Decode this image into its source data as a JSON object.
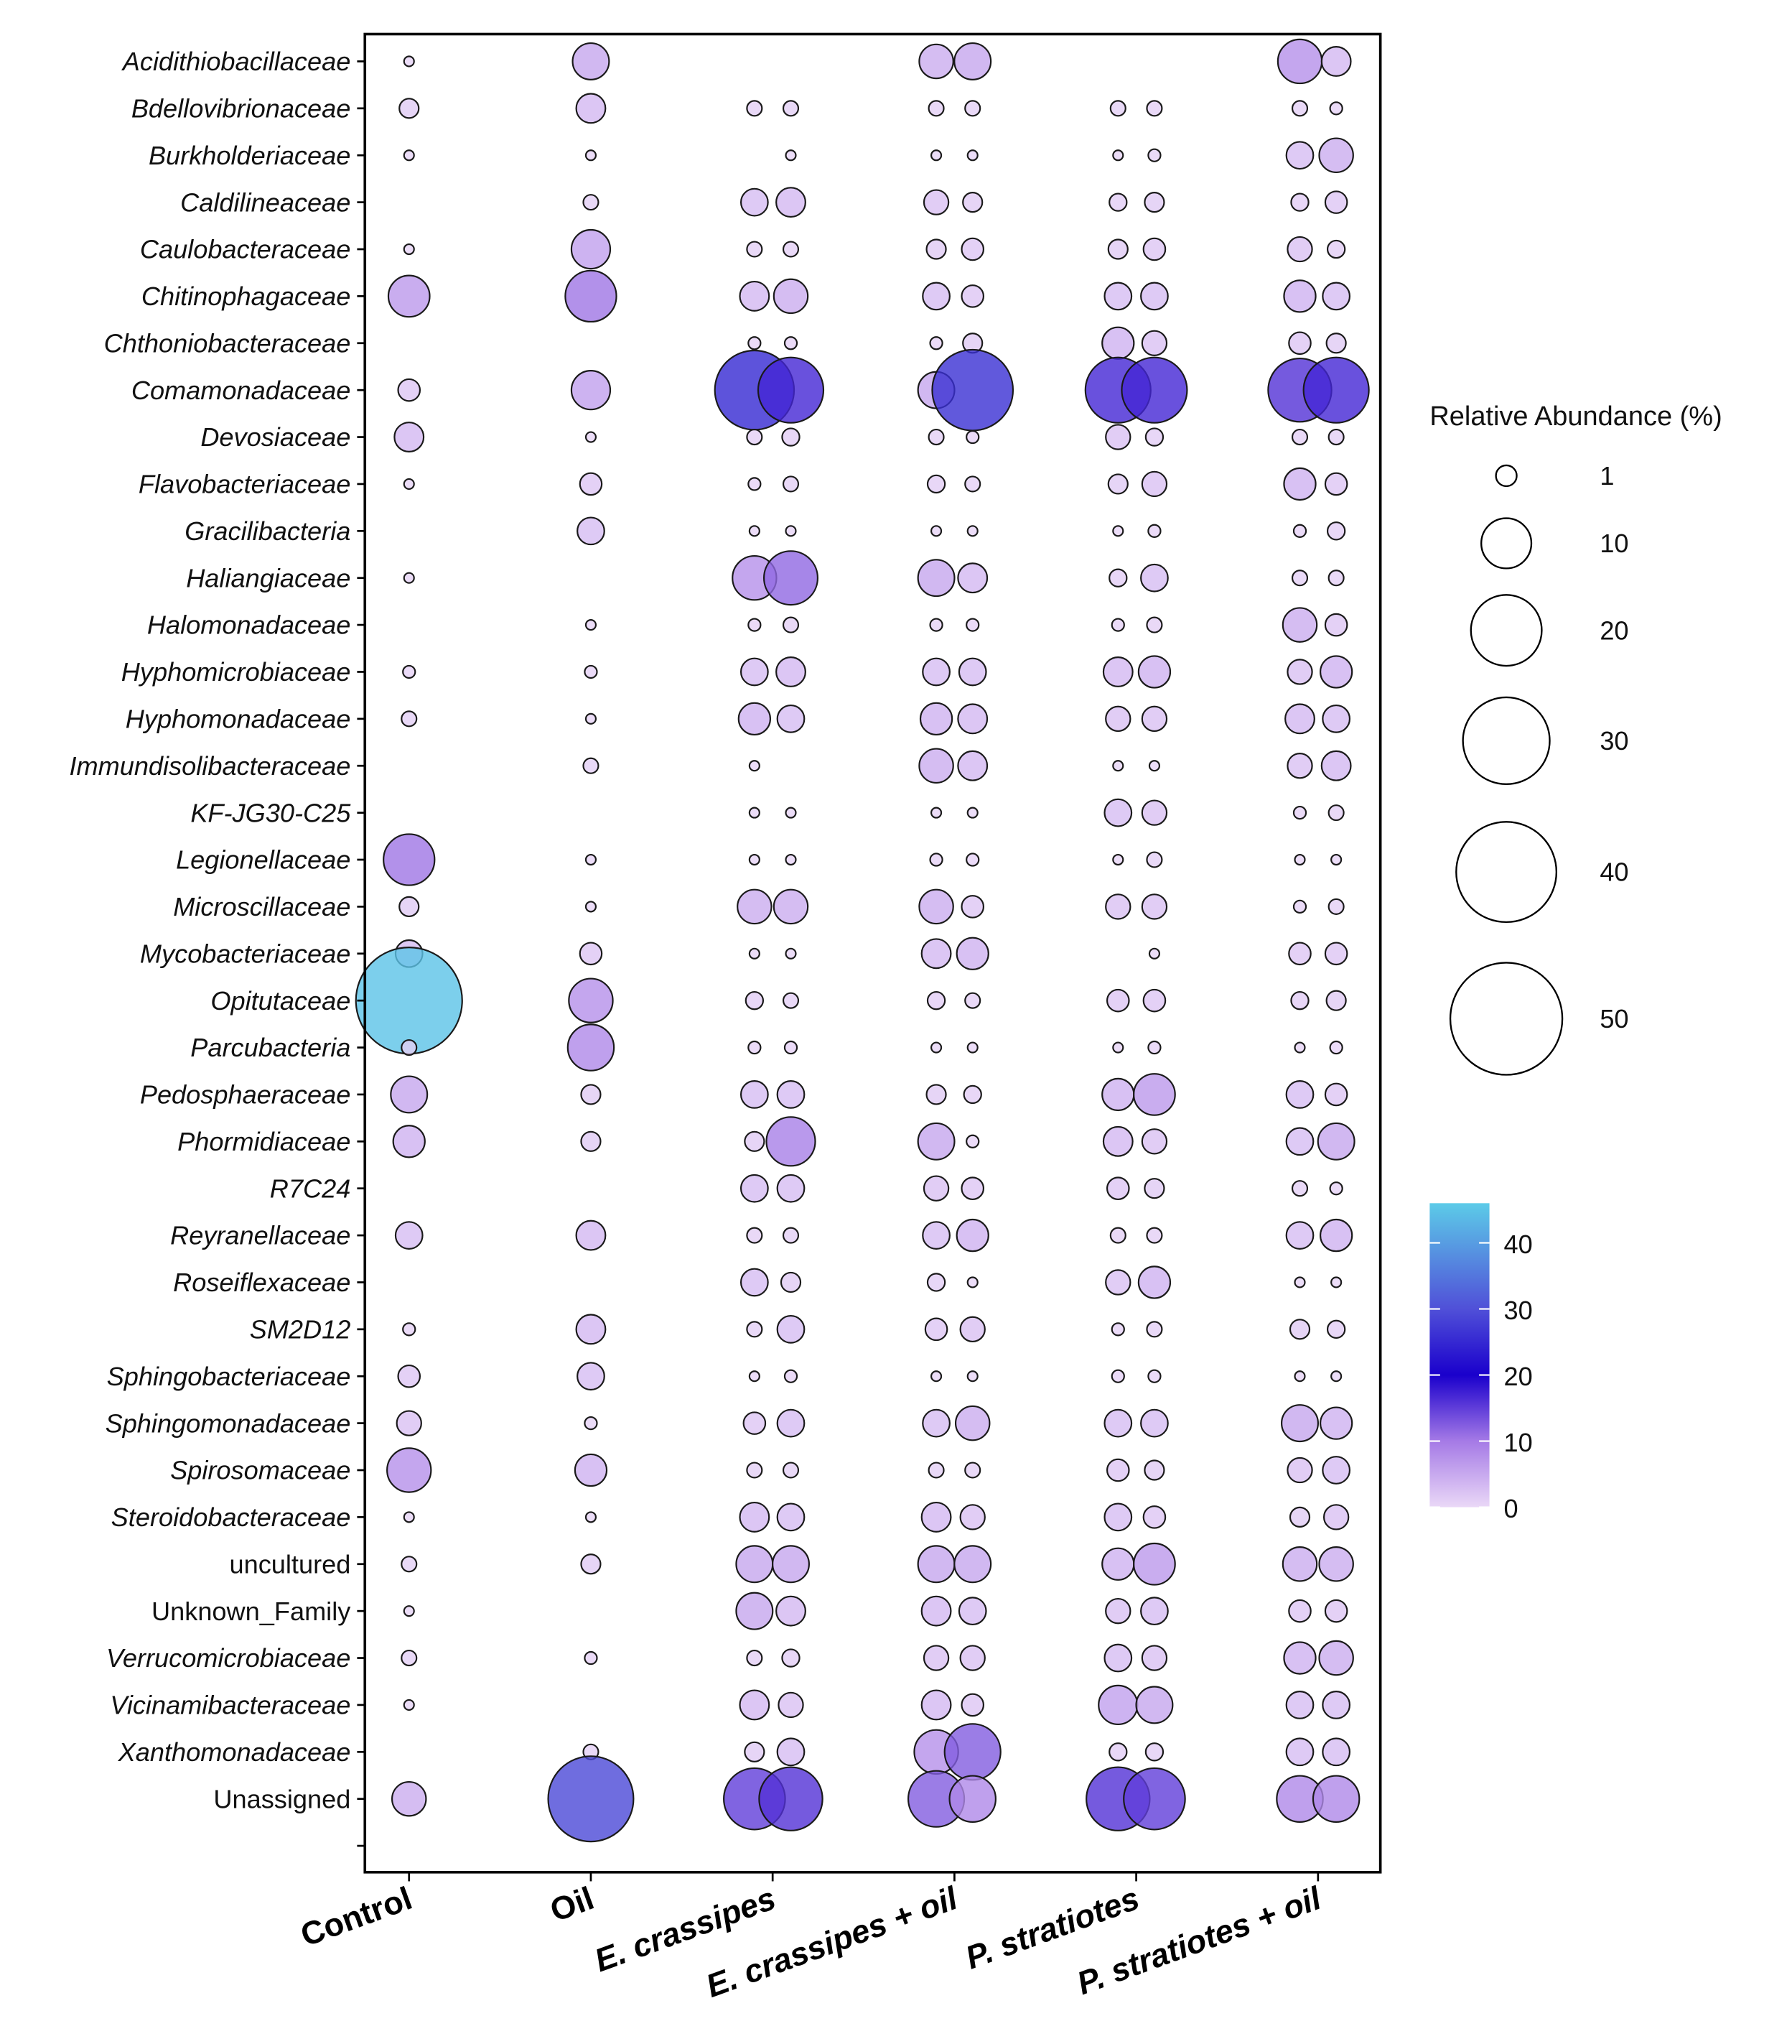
{
  "chart_data": {
    "type": "scatter",
    "subtype": "bubble",
    "title": "",
    "xlabel": "",
    "ylabel": "",
    "groups": [
      "Control",
      "Oil",
      "E. crassipes",
      "E. crassipes + oil",
      "P. stratiotes",
      "P. stratiotes + oil"
    ],
    "group_italic": [
      false,
      false,
      true,
      true,
      true,
      true
    ],
    "replicates_per_group": [
      1,
      1,
      2,
      2,
      2,
      2
    ],
    "families": [
      {
        "name": "Acidithiobacillaceae",
        "italic": true,
        "values": [
          0.4,
          5.3,
          null,
          null,
          4.6,
          5.3,
          null,
          null,
          7.7,
          3.4
        ]
      },
      {
        "name": "Bdellovibrionaceae",
        "italic": true,
        "values": [
          1.5,
          3.4,
          0.9,
          0.9,
          0.9,
          0.9,
          0.9,
          0.9,
          0.9,
          0.6
        ]
      },
      {
        "name": "Burkholderiaceae",
        "italic": true,
        "values": [
          0.4,
          0.4,
          null,
          0.4,
          0.4,
          0.4,
          0.4,
          0.6,
          2.9,
          4.6
        ]
      },
      {
        "name": "Caldilineaceae",
        "italic": true,
        "values": [
          null,
          0.9,
          2.9,
          3.4,
          2.4,
          1.5,
          1.2,
          1.5,
          1.2,
          1.9
        ]
      },
      {
        "name": "Caulobacteraceae",
        "italic": true,
        "values": [
          0.4,
          6.0,
          0.9,
          0.9,
          1.5,
          1.9,
          1.5,
          1.9,
          2.4,
          1.2
        ]
      },
      {
        "name": "Chitinophagaceae",
        "italic": true,
        "values": [
          6.8,
          10.4,
          3.4,
          4.6,
          2.9,
          1.9,
          2.9,
          2.9,
          4.0,
          2.9
        ]
      },
      {
        "name": "Chthoniobacteraceae",
        "italic": true,
        "values": [
          null,
          null,
          0.6,
          0.6,
          0.6,
          1.5,
          4.0,
          2.4,
          1.9,
          1.5
        ]
      },
      {
        "name": "Comamonadaceae",
        "italic": true,
        "values": [
          1.9,
          6.0,
          25,
          17,
          5.3,
          26,
          17,
          17,
          16,
          17
        ]
      },
      {
        "name": "Devosiaceae",
        "italic": true,
        "values": [
          3.4,
          0.4,
          0.9,
          1.2,
          0.9,
          0.6,
          2.4,
          1.2,
          0.9,
          0.9
        ]
      },
      {
        "name": "Flavobacteriaceae",
        "italic": true,
        "values": [
          0.4,
          1.9,
          0.6,
          0.9,
          1.2,
          0.9,
          1.5,
          2.4,
          4.0,
          1.9
        ]
      },
      {
        "name": "Gracilibacteria",
        "italic": true,
        "values": [
          null,
          2.9,
          0.4,
          0.4,
          0.4,
          0.4,
          0.4,
          0.6,
          0.6,
          1.2
        ]
      },
      {
        "name": "Haliangiaceae",
        "italic": true,
        "values": [
          0.4,
          null,
          7.7,
          11.5,
          5.3,
          3.4,
          1.2,
          2.9,
          0.9,
          0.9
        ]
      },
      {
        "name": "Halomonadaceae",
        "italic": true,
        "values": [
          null,
          0.4,
          0.6,
          0.9,
          0.6,
          0.6,
          0.6,
          0.9,
          4.6,
          1.9
        ]
      },
      {
        "name": "Hyphomicrobiaceae",
        "italic": true,
        "values": [
          0.6,
          0.6,
          2.9,
          3.4,
          2.9,
          2.9,
          3.4,
          4.0,
          2.4,
          4.0
        ]
      },
      {
        "name": "Hyphomonadaceae",
        "italic": true,
        "values": [
          0.9,
          0.4,
          4.0,
          2.9,
          4.0,
          3.4,
          2.4,
          2.4,
          3.4,
          2.9
        ]
      },
      {
        "name": "Immundisolibacteraceae",
        "italic": true,
        "values": [
          null,
          0.9,
          0.4,
          null,
          4.6,
          3.4,
          0.4,
          0.4,
          2.4,
          3.4
        ]
      },
      {
        "name": "KF-JG30-C25",
        "italic": true,
        "values": [
          null,
          null,
          0.4,
          0.4,
          0.4,
          0.4,
          2.9,
          2.4,
          0.6,
          0.9
        ]
      },
      {
        "name": "Legionellaceae",
        "italic": true,
        "values": [
          10.4,
          0.4,
          0.4,
          0.4,
          0.6,
          0.6,
          0.4,
          0.9,
          0.4,
          0.4
        ]
      },
      {
        "name": "Microscillaceae",
        "italic": true,
        "values": [
          1.5,
          0.4,
          4.6,
          4.6,
          4.6,
          1.9,
          2.4,
          2.4,
          0.6,
          0.9
        ]
      },
      {
        "name": "Mycobacteriaceae",
        "italic": true,
        "values": [
          2.9,
          1.9,
          0.4,
          0.4,
          3.4,
          4.0,
          null,
          0.4,
          1.9,
          1.9
        ]
      },
      {
        "name": "Opitutaceae",
        "italic": true,
        "values": [
          45,
          7.7,
          1.2,
          0.9,
          1.2,
          0.9,
          1.9,
          1.9,
          1.2,
          1.5
        ]
      },
      {
        "name": "Parcubacteria",
        "italic": true,
        "values": [
          0.9,
          8.5,
          0.6,
          0.6,
          0.4,
          0.4,
          0.4,
          0.6,
          0.4,
          0.6
        ]
      },
      {
        "name": "Pedosphaeraceae",
        "italic": true,
        "values": [
          5.3,
          1.5,
          2.9,
          2.9,
          1.5,
          1.2,
          4.0,
          6.8,
          2.9,
          1.9
        ]
      },
      {
        "name": "Phormidiaceae",
        "italic": true,
        "values": [
          4.0,
          1.5,
          1.5,
          9.5,
          5.3,
          0.6,
          3.4,
          2.4,
          2.9,
          5.3
        ]
      },
      {
        "name": "R7C24",
        "italic": true,
        "values": [
          null,
          null,
          2.9,
          2.9,
          2.4,
          1.9,
          1.9,
          1.5,
          0.9,
          0.6
        ]
      },
      {
        "name": "Reyranellaceae",
        "italic": true,
        "values": [
          2.9,
          3.4,
          0.9,
          0.9,
          2.9,
          4.0,
          0.9,
          0.9,
          2.9,
          4.0
        ]
      },
      {
        "name": "Roseiflexaceae",
        "italic": true,
        "values": [
          null,
          null,
          2.9,
          1.5,
          1.2,
          0.4,
          2.4,
          4.0,
          0.4,
          0.4
        ]
      },
      {
        "name": "SM2D12",
        "italic": true,
        "values": [
          0.6,
          3.4,
          0.9,
          2.9,
          1.9,
          2.4,
          0.6,
          0.9,
          1.5,
          1.2
        ]
      },
      {
        "name": "Sphingobacteriaceae",
        "italic": true,
        "values": [
          1.9,
          2.9,
          0.4,
          0.6,
          0.4,
          0.4,
          0.6,
          0.6,
          0.4,
          0.4
        ]
      },
      {
        "name": "Sphingomonadaceae",
        "italic": true,
        "values": [
          2.4,
          0.6,
          1.9,
          2.9,
          2.9,
          4.6,
          2.9,
          2.9,
          5.3,
          4.0
        ]
      },
      {
        "name": "Spirosomaceae",
        "italic": true,
        "values": [
          7.7,
          4.0,
          0.9,
          0.9,
          0.9,
          0.9,
          1.9,
          1.5,
          2.4,
          2.9
        ]
      },
      {
        "name": "Steroidobacteraceae",
        "italic": true,
        "values": [
          0.4,
          0.4,
          3.4,
          2.9,
          3.4,
          2.4,
          2.9,
          1.9,
          1.5,
          2.4
        ]
      },
      {
        "name": "uncultured",
        "italic": false,
        "values": [
          0.9,
          1.5,
          5.3,
          5.3,
          5.3,
          5.3,
          4.0,
          6.8,
          4.6,
          4.6
        ]
      },
      {
        "name": "Unknown_Family",
        "italic": false,
        "values": [
          0.4,
          null,
          5.3,
          3.4,
          3.4,
          2.9,
          2.4,
          2.9,
          1.9,
          1.9
        ]
      },
      {
        "name": "Verrucomicrobiaceae",
        "italic": true,
        "values": [
          0.9,
          0.6,
          0.9,
          1.2,
          2.4,
          2.4,
          2.9,
          2.4,
          4.0,
          4.6
        ]
      },
      {
        "name": "Vicinamibacteraceae",
        "italic": true,
        "values": [
          0.4,
          null,
          3.4,
          2.4,
          3.4,
          1.9,
          6.0,
          5.3,
          2.9,
          2.9
        ]
      },
      {
        "name": "Xanthomonadaceae",
        "italic": true,
        "values": [
          null,
          0.9,
          1.5,
          2.9,
          7.7,
          12.5,
          1.2,
          1.2,
          2.9,
          2.9
        ]
      },
      {
        "name": "Unassigned",
        "italic": false,
        "values": [
          4.6,
          29,
          15,
          16,
          12.5,
          8.5,
          16,
          15,
          8.5,
          8.5
        ]
      },
      {
        "name": "",
        "italic": false,
        "values": [
          null,
          null,
          null,
          null,
          null,
          null,
          null,
          null,
          null,
          null
        ]
      }
    ],
    "size_legend": {
      "title": "Relative Abundance (%)",
      "values": [
        1,
        10,
        20,
        30,
        40,
        50
      ],
      "labels": [
        "1",
        "10",
        "20",
        "30",
        "40",
        "50"
      ]
    },
    "color_legend": {
      "range": [
        0,
        46
      ],
      "ticks": [
        0,
        10,
        20,
        30,
        40
      ],
      "labels": [
        "0",
        "10",
        "20",
        "30",
        "40"
      ],
      "stops": [
        [
          0,
          "#ead8f7"
        ],
        [
          10,
          "#a57ae6"
        ],
        [
          20,
          "#1a00cc"
        ],
        [
          30,
          "#5050d8"
        ],
        [
          46,
          "#5ccbe8"
        ]
      ]
    }
  }
}
